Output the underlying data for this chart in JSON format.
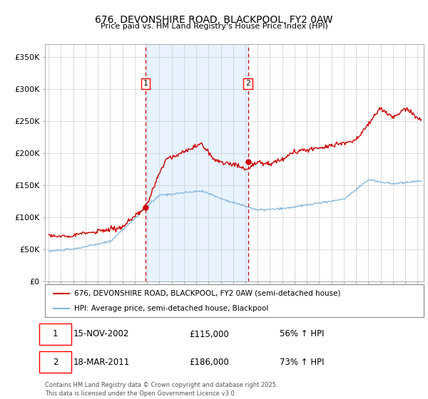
{
  "title": "676, DEVONSHIRE ROAD, BLACKPOOL, FY2 0AW",
  "subtitle": "Price paid vs. HM Land Registry's House Price Index (HPI)",
  "ylabel_ticks": [
    "£0",
    "£50K",
    "£100K",
    "£150K",
    "£200K",
    "£250K",
    "£300K",
    "£350K"
  ],
  "ylim": [
    0,
    370000
  ],
  "yticks": [
    0,
    50000,
    100000,
    150000,
    200000,
    250000,
    300000,
    350000
  ],
  "sale1_date_x": 2002.87,
  "sale1_price": 115000,
  "sale2_date_x": 2011.21,
  "sale2_price": 186000,
  "legend_line1": "676, DEVONSHIRE ROAD, BLACKPOOL, FY2 0AW (semi-detached house)",
  "legend_line2": "HPI: Average price, semi-detached house, Blackpool",
  "sale1_date_str": "15-NOV-2002",
  "sale1_price_str": "£115,000",
  "sale1_pct_str": "56% ↑ HPI",
  "sale2_date_str": "18-MAR-2011",
  "sale2_price_str": "£186,000",
  "sale2_pct_str": "73% ↑ HPI",
  "footnote": "Contains HM Land Registry data © Crown copyright and database right 2025.\nThis data is licensed under the Open Government Licence v3.0.",
  "line_color_red": "#cc0000",
  "line_color_blue": "#7fb3d9",
  "background_color": "#ffffff",
  "grid_color": "#cccccc",
  "shading_color": "#ddeeff",
  "xlim_start": 1994.7,
  "xlim_end": 2025.5
}
